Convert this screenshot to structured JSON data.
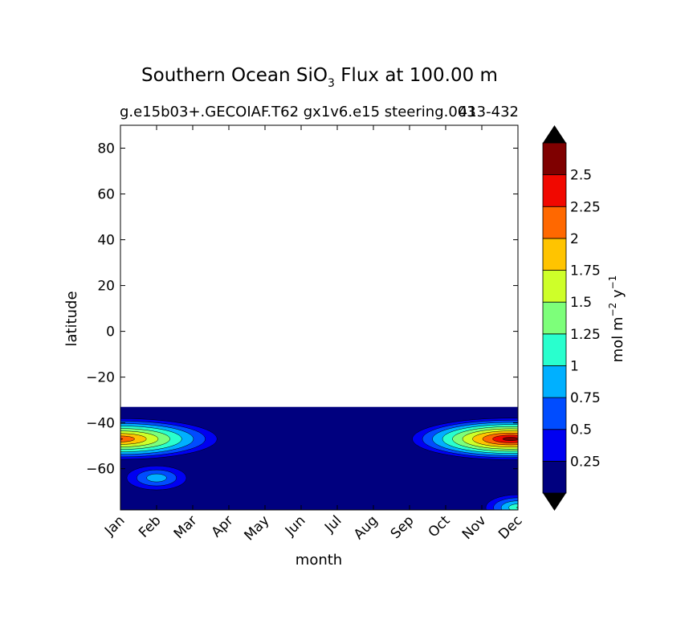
{
  "figure": {
    "title_main": "Southern Ocean SiO",
    "title_subscript": "3",
    "title_rest": " Flux at 100.00 m",
    "subtitle_left": "g.e15b03+.GECOIAF.T62 gx1v6.e15 steering.003",
    "subtitle_right": "413-432"
  },
  "chart_data": {
    "type": "heatmap",
    "xlabel": "month",
    "ylabel": "latitude",
    "x_categories": [
      "Jan",
      "Feb",
      "Mar",
      "Apr",
      "May",
      "Jun",
      "Jul",
      "Aug",
      "Sep",
      "Oct",
      "Nov",
      "Dec"
    ],
    "ylim": [
      -78,
      90
    ],
    "y_ticks": [
      80,
      60,
      40,
      20,
      0,
      -20,
      -40,
      -60
    ],
    "data_lat_range": [
      -78,
      -33
    ],
    "colorbar": {
      "label": "mol m",
      "label_sup1": "−2",
      "label_mid": " y",
      "label_sup2": "−1",
      "levels": [
        0,
        0.25,
        0.5,
        0.75,
        1,
        1.25,
        1.5,
        1.75,
        2,
        2.25,
        2.5,
        2.75
      ],
      "tick_labels": [
        "0.25",
        "0.5",
        "0.75",
        "1",
        "1.25",
        "1.5",
        "1.75",
        "2",
        "2.25",
        "2.5"
      ],
      "colors": [
        "#00007f",
        "#0000f1",
        "#004cff",
        "#00b0ff",
        "#29ffce",
        "#7dff7a",
        "#ceff29",
        "#ffc400",
        "#ff6800",
        "#f10800",
        "#7f0000"
      ],
      "extend_low_color": "#000000",
      "extend_high_color": "#000000"
    },
    "features": [
      {
        "month": 0.0,
        "lat": -47,
        "peak": 2.3
      },
      {
        "month": 1.0,
        "lat": -64,
        "peak": 1.0
      },
      {
        "month": 10.8,
        "lat": -47,
        "peak": 2.7
      },
      {
        "month": 11.0,
        "lat": -77,
        "peak": 1.3
      }
    ]
  }
}
